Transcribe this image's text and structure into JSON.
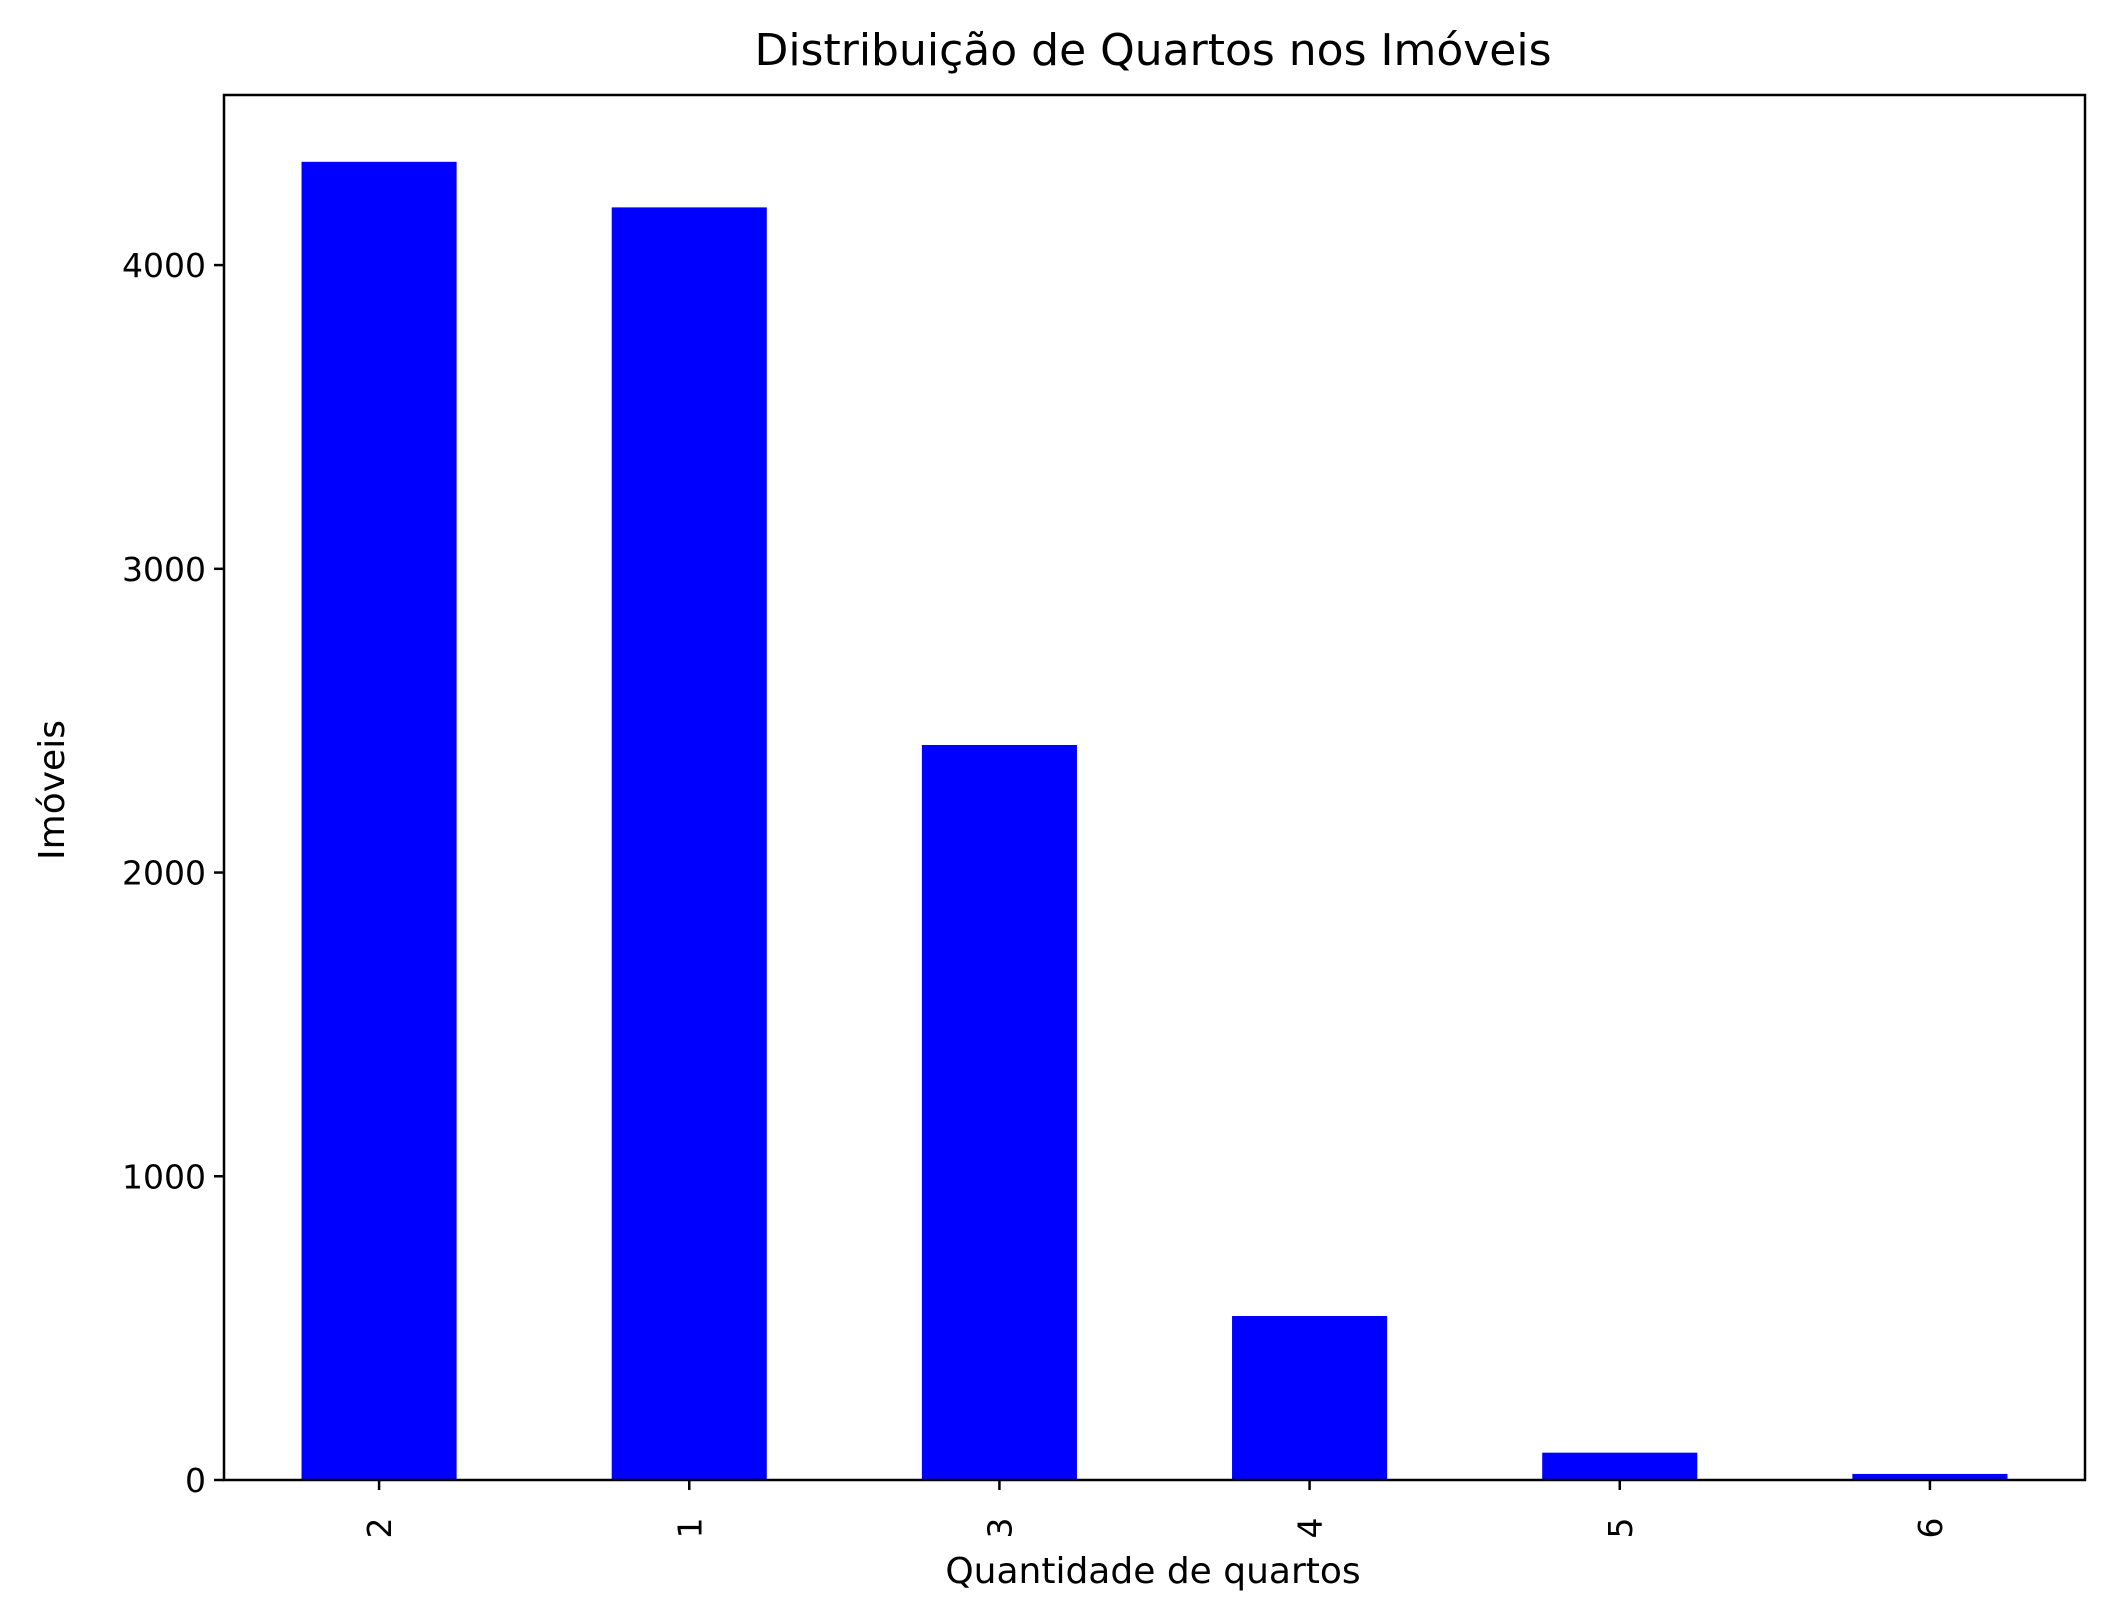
{
  "chart_data": {
    "type": "bar",
    "title": "Distribuição de Quartos nos Imóveis",
    "xlabel": "Quantidade de quartos",
    "ylabel": "Imóveis",
    "categories": [
      "2",
      "1",
      "3",
      "4",
      "5",
      "6"
    ],
    "values": [
      4340,
      4190,
      2420,
      540,
      90,
      20
    ],
    "ylim": [
      0,
      4560
    ],
    "yticks": [
      0,
      1000,
      2000,
      3000,
      4000
    ],
    "bar_color": "#0000ff",
    "grid": false,
    "legend": "none",
    "x_tick_rotation": "vertical"
  }
}
